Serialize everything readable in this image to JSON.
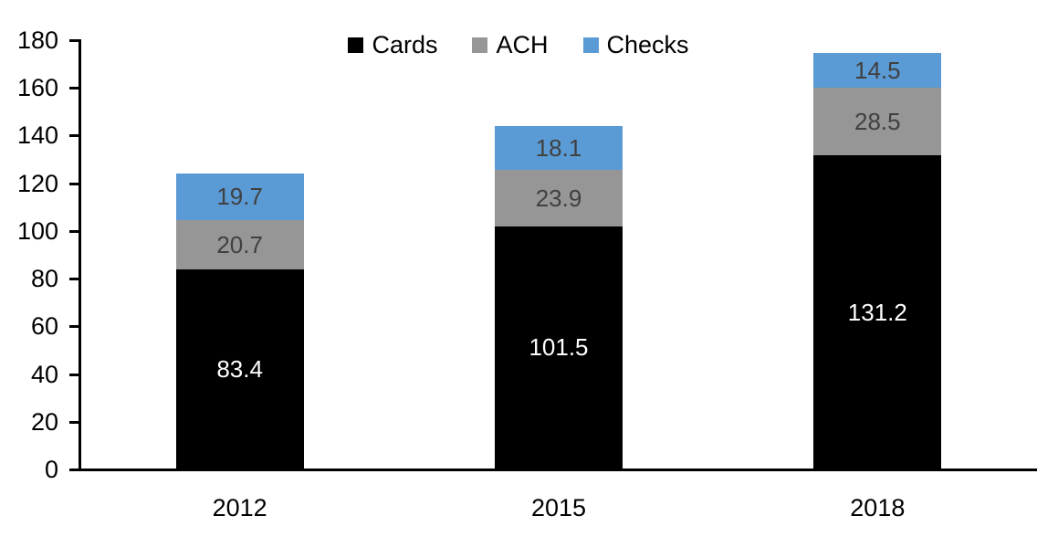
{
  "chart_data": {
    "type": "bar",
    "stacked": true,
    "title": "",
    "xlabel": "",
    "ylabel": "",
    "categories": [
      "2012",
      "2015",
      "2018"
    ],
    "series": [
      {
        "name": "Cards",
        "color": "#000000",
        "label_color": "#ffffff",
        "values": [
          83.4,
          101.5,
          131.2
        ]
      },
      {
        "name": "ACH",
        "color": "#969696",
        "label_color": "#404040",
        "values": [
          20.7,
          23.9,
          28.5
        ]
      },
      {
        "name": "Checks",
        "color": "#5B9BD5",
        "label_color": "#404040",
        "values": [
          19.7,
          18.1,
          14.5
        ]
      }
    ],
    "stack_totals": [
      123.8,
      143.5,
      174.2
    ],
    "ylim": [
      0,
      180
    ],
    "ytick_step": 20,
    "y_tick_labels": [
      "0",
      "20",
      "40",
      "60",
      "80",
      "100",
      "120",
      "140",
      "160",
      "180"
    ],
    "grid": false,
    "legend_position": "top-center",
    "axis_color": "#000000",
    "background_color": "#ffffff"
  }
}
